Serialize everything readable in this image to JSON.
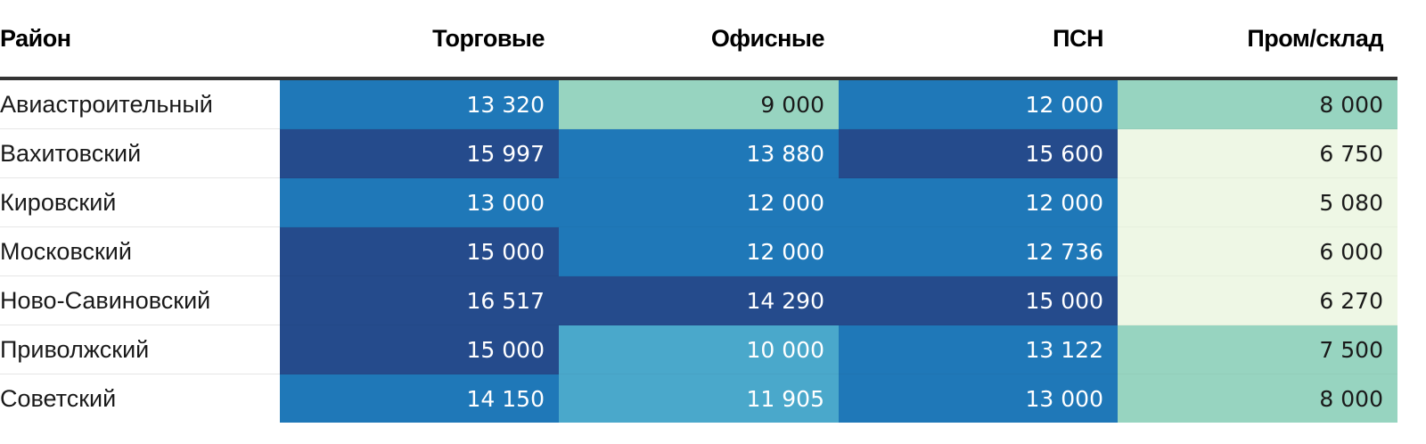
{
  "chart_data": {
    "type": "table",
    "columns": [
      "Район",
      "Торговые",
      "Офисные",
      "ПСН",
      "Пром/склад"
    ],
    "rows": [
      {
        "district": "Авиастроительный",
        "values": [
          "13 320",
          "9 000",
          "12 000",
          "8 000"
        ],
        "levels": [
          2,
          4,
          2,
          4
        ]
      },
      {
        "district": "Вахитовский",
        "values": [
          "15 997",
          "13 880",
          "15 600",
          "6 750"
        ],
        "levels": [
          1,
          2,
          1,
          5
        ]
      },
      {
        "district": "Кировский",
        "values": [
          "13 000",
          "12 000",
          "12 000",
          "5 080"
        ],
        "levels": [
          2,
          2,
          2,
          5
        ]
      },
      {
        "district": "Московский",
        "values": [
          "15 000",
          "12 000",
          "12 736",
          "6 000"
        ],
        "levels": [
          1,
          2,
          2,
          5
        ]
      },
      {
        "district": "Ново-Савиновский",
        "values": [
          "16 517",
          "14 290",
          "15 000",
          "6 270"
        ],
        "levels": [
          1,
          1,
          1,
          5
        ]
      },
      {
        "district": "Приволжский",
        "values": [
          "15 000",
          "10 000",
          "13 122",
          "7 500"
        ],
        "levels": [
          1,
          3,
          2,
          4
        ]
      },
      {
        "district": "Советский",
        "values": [
          "14 150",
          "11 905",
          "13 000",
          "8 000"
        ],
        "levels": [
          2,
          3,
          2,
          4
        ]
      }
    ]
  },
  "color_scale": {
    "1": {
      "bg": "#254b8c",
      "fg": "#ffffff"
    },
    "2": {
      "bg": "#1f78b8",
      "fg": "#ffffff"
    },
    "3": {
      "bg": "#4aa8cb",
      "fg": "#ffffff"
    },
    "4": {
      "bg": "#97d4c0",
      "fg": "#1a1a1a"
    },
    "5": {
      "bg": "#eef7e5",
      "fg": "#1a1a1a"
    }
  }
}
